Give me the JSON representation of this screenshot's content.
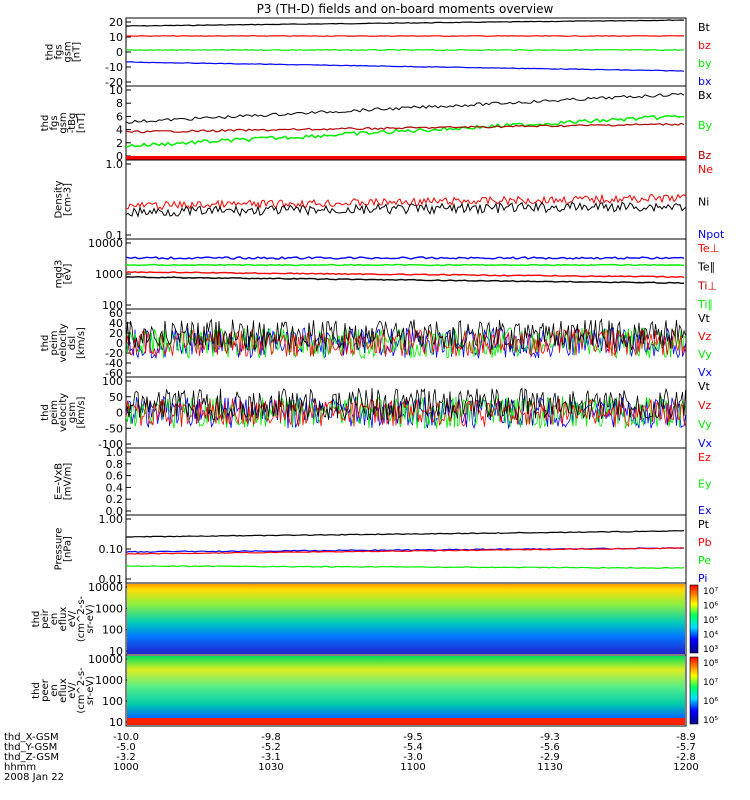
{
  "title": "P3 (TH-D) fields and on-board moments overview",
  "colors": {
    "black": "#000000",
    "red": "#ff0000",
    "green": "#00ee00",
    "blue": "#0000ff",
    "darkred": "#b00000"
  },
  "panels": [
    {
      "id": "fgs-gsm",
      "ylabel": [
        "thd",
        "fgs",
        "gsm",
        "[nT]"
      ],
      "ticks": [
        "20",
        "10",
        "0",
        "-10",
        "-20"
      ],
      "legend": [
        {
          "text": "Bt",
          "color": "black"
        },
        {
          "text": "bz",
          "color": "red"
        },
        {
          "text": "by",
          "color": "green"
        },
        {
          "text": "bx",
          "color": "blue"
        }
      ]
    },
    {
      "id": "fgs-tbg",
      "ylabel": [
        "thd",
        "fgs",
        "gsm",
        "-tBg",
        "[nT]"
      ],
      "ticks": [
        "10",
        "8",
        "6",
        "4",
        "2",
        "0"
      ],
      "legend": [
        {
          "text": "Bx",
          "color": "black"
        },
        {
          "text": "By",
          "color": "green"
        },
        {
          "text": "Bz",
          "color": "darkred"
        }
      ]
    },
    {
      "id": "density",
      "ylabel": [
        "Density",
        "[cm-3]"
      ],
      "ticks": [
        "1.0",
        "0.1"
      ],
      "legend": [
        {
          "text": "Ne",
          "color": "red"
        },
        {
          "text": "Ni",
          "color": "black"
        },
        {
          "text": "Npot",
          "color": "blue"
        }
      ]
    },
    {
      "id": "temperature",
      "ylabel": [
        "mgd3",
        "[eV]"
      ],
      "ticks": [
        "10000",
        "1000",
        "100"
      ],
      "legend": [
        {
          "text": "Te⊥",
          "color": "red"
        },
        {
          "text": "Te∥",
          "color": "black"
        },
        {
          "text": "Ti⊥",
          "color": "darkred"
        },
        {
          "text": "Ti∥",
          "color": "green"
        }
      ]
    },
    {
      "id": "peim-velocity",
      "ylabel": [
        "thd",
        "peim",
        "velocity",
        "dsl",
        "[km/s]"
      ],
      "ticks": [
        "60",
        "40",
        "20",
        "0",
        "-20",
        "-40",
        "-60"
      ],
      "legend": [
        {
          "text": "Vt",
          "color": "black"
        },
        {
          "text": "Vz",
          "color": "red"
        },
        {
          "text": "Vy",
          "color": "green"
        },
        {
          "text": "Vx",
          "color": "blue"
        }
      ]
    },
    {
      "id": "peim-velocity-gsm",
      "ylabel": [
        "thd",
        "peim",
        "velocity",
        "gsm",
        "[km/s]"
      ],
      "ticks": [
        "100",
        "50",
        "0",
        "-50",
        "-100"
      ],
      "legend": [
        {
          "text": "Vt",
          "color": "black"
        },
        {
          "text": "Vz",
          "color": "red"
        },
        {
          "text": "Vy",
          "color": "green"
        },
        {
          "text": "Vx",
          "color": "blue"
        }
      ]
    },
    {
      "id": "efield",
      "ylabel": [
        "E=-VxB",
        "[mV/m]"
      ],
      "ticks": [
        "1.0",
        "0.8",
        "0.6",
        "0.4",
        "0.2",
        "0.0"
      ],
      "legend": [
        {
          "text": "Ez",
          "color": "red"
        },
        {
          "text": "Ey",
          "color": "green"
        },
        {
          "text": "Ex",
          "color": "blue"
        }
      ]
    },
    {
      "id": "pressure",
      "ylabel": [
        "Pressure",
        "[nPa]"
      ],
      "ticks": [
        "1.00",
        "0.10",
        "0.01"
      ],
      "legend": [
        {
          "text": "Pt",
          "color": "black"
        },
        {
          "text": "Pb",
          "color": "red"
        },
        {
          "text": "Pe",
          "color": "green"
        },
        {
          "text": "Pi",
          "color": "blue"
        }
      ]
    },
    {
      "id": "peir-spectrogram",
      "ylabel": [
        "thd",
        "peir",
        "en",
        "eflux",
        "eV/",
        "(cm^2-s-",
        "sr-eV)"
      ],
      "ticks": [
        "10000",
        "1000",
        "100",
        "10"
      ],
      "colorbar": {
        "ticks": [
          "10⁷",
          "10⁶",
          "10⁵",
          "10⁴",
          "10³"
        ]
      }
    },
    {
      "id": "peer-spectrogram",
      "ylabel": [
        "thd",
        "peer",
        "en",
        "eflux",
        "eV/",
        "(cm^2-s-",
        "sr-eV)"
      ],
      "ticks": [
        "10000",
        "1000",
        "100",
        "10"
      ],
      "colorbar": {
        "ticks": [
          "10⁸",
          "10⁷",
          "10⁶",
          "10⁵"
        ]
      }
    }
  ],
  "footer": {
    "rows": [
      {
        "label": "thd_X-GSM",
        "values": [
          "-10.0",
          "-9.8",
          "-9.5",
          "-9.3",
          "-8.9"
        ]
      },
      {
        "label": "thd_Y-GSM",
        "values": [
          "-5.0",
          "-5.2",
          "-5.4",
          "-5.6",
          "-5.7"
        ]
      },
      {
        "label": "thd_Z-GSM",
        "values": [
          "-3.2",
          "-3.1",
          "-3.0",
          "-2.9",
          "-2.8"
        ]
      },
      {
        "label": "hhmm",
        "values": [
          "1000",
          "1030",
          "1100",
          "1130",
          "1200"
        ]
      }
    ],
    "date": "2008 Jan 22"
  }
}
